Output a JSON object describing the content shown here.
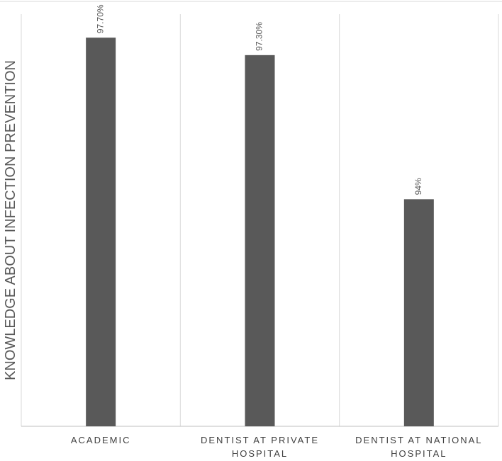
{
  "chart_data": {
    "type": "bar",
    "ylabel": "KNOWLEDGE ABOUT INFECTION PREVENTION",
    "xlabel": "",
    "categories": [
      [
        "ACADEMIC"
      ],
      [
        "DENTIST AT PRIVATE",
        "HOSPITAL"
      ],
      [
        "DENTIST AT NATIONAL",
        "HOSPITAL"
      ]
    ],
    "values": [
      97.7,
      97.3,
      94.0
    ],
    "data_labels": [
      "97.70%",
      "97.30%",
      "94%"
    ],
    "ylim": [
      88.8,
      98.4
    ],
    "grid": "vertical category separators",
    "legend": "none",
    "colors": {
      "bar": "#595959",
      "gridline": "#d9d9d9",
      "axis": "#bfbfbf"
    }
  }
}
